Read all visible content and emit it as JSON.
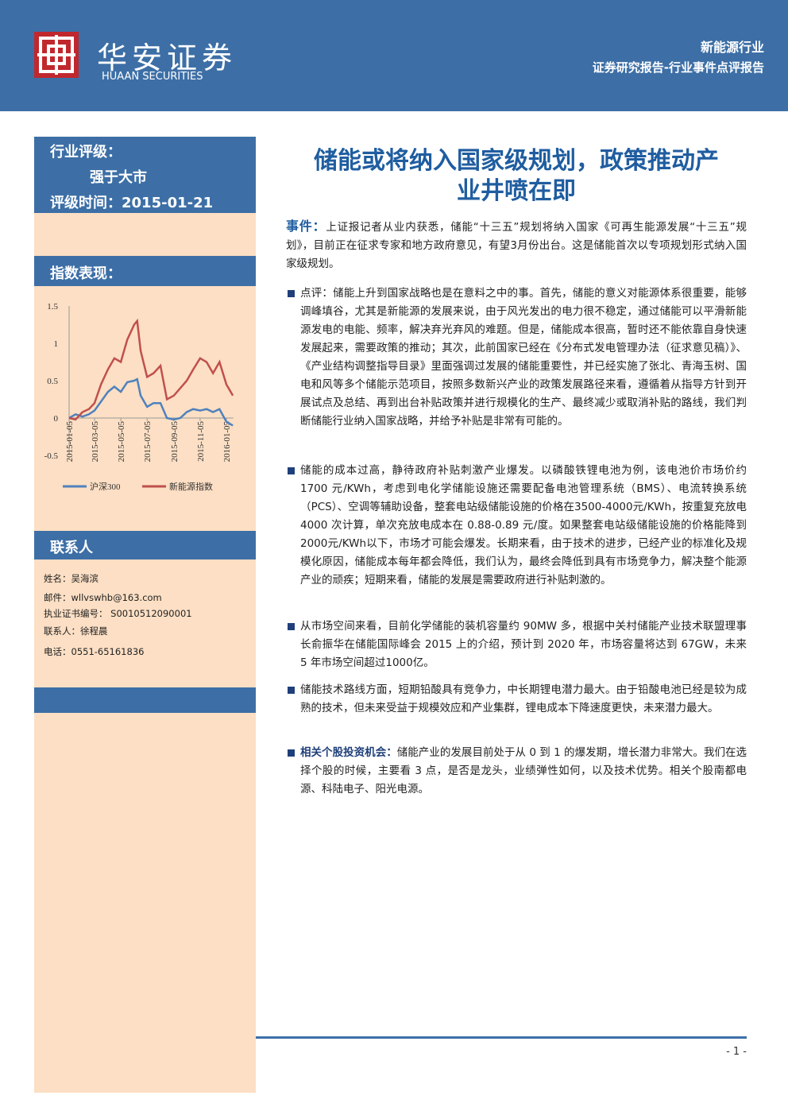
{
  "header": {
    "company_cn": "华安证券",
    "company_en": "HUAAN SECURITIES",
    "sector": "新能源行业",
    "report_type": "证券研究报告-行业事件点评报告"
  },
  "sidebar": {
    "rating_label": "行业评级：",
    "rating": "强于大市",
    "rating_date": "评级时间：2015-01-21",
    "index_label": "指数表现：",
    "contact_label": "联系人",
    "contacts": [
      "姓名：吴海滨",
      "邮件：wllvswhb@163.com",
      "执业证书编号： S0010512090001",
      "联系人：徐程晨",
      "电话：0551-65161836"
    ]
  },
  "chart_data": {
    "type": "line",
    "x": [
      "2015-01-05",
      "2015-01-20",
      "2015-02-05",
      "2015-02-20",
      "2015-03-05",
      "2015-03-20",
      "2015-04-05",
      "2015-04-20",
      "2015-05-05",
      "2015-05-20",
      "2015-06-05",
      "2015-06-12",
      "2015-06-20",
      "2015-07-05",
      "2015-07-20",
      "2015-08-05",
      "2015-08-20",
      "2015-09-05",
      "2015-09-20",
      "2015-10-05",
      "2015-10-20",
      "2015-11-05",
      "2015-11-20",
      "2015-12-05",
      "2015-12-20",
      "2016-01-05",
      "2016-01-20"
    ],
    "series": [
      {
        "name": "沪深300",
        "color": "#4f81bd",
        "values": [
          0,
          0.05,
          0.02,
          0.05,
          0.1,
          0.22,
          0.35,
          0.42,
          0.35,
          0.48,
          0.5,
          0.52,
          0.3,
          0.15,
          0.2,
          0.2,
          0,
          -0.02,
          0,
          0.08,
          0.12,
          0.1,
          0.12,
          0.08,
          0.12,
          -0.05,
          -0.1
        ]
      },
      {
        "name": "新能源指数",
        "color": "#c0504d",
        "values": [
          0,
          -0.02,
          0.08,
          0.12,
          0.2,
          0.45,
          0.65,
          0.8,
          0.75,
          1.05,
          1.25,
          1.3,
          0.9,
          0.55,
          0.6,
          0.7,
          0.25,
          0.3,
          0.4,
          0.5,
          0.65,
          0.8,
          0.75,
          0.6,
          0.75,
          0.45,
          0.3
        ]
      }
    ],
    "ylim": [
      -0.5,
      1.5
    ],
    "yticks": [
      -0.5,
      0,
      0.5,
      1,
      1.5
    ],
    "xlim": [
      "2015-01-05",
      "2016-01-21"
    ],
    "xticks": [
      "2015-01-05",
      "2015-03-05",
      "2015-05-05",
      "2015-07-05",
      "2015-09-05",
      "2015-11-05",
      "2016-01-05"
    ]
  },
  "body": {
    "title": [
      "储能或将纳入国家级规划，政策推动产",
      "业井喷在即"
    ],
    "event": {
      "lead": "事件：",
      "text": "上证报记者从业内获悉，储能“十三五”规划将纳入国家《可再生能源发展“十三五”规划》，目前正在征求专家和地方政府意见，有望3月份出台。这是储能首次以专项规划形式纳入国家级规划。"
    },
    "bullets": [
      {
        "lead": "",
        "text": "点评：储能上升到国家战略也是在意料之中的事。首先，储能的意义对能源体系很重要，能够调峰填谷，尤其是新能源的发展来说，由于风光发出的电力很不稳定，通过储能可以平滑新能源发电的电能、频率，解决弃光弃风的难题。但是，储能成本很高，暂时还不能依靠自身快速发展起来，需要政策的推动；其次，此前国家已经在《分布式发电管理办法（征求意见稿）》、《产业结构调整指导目录》里面强调过发展的储能重要性，并已经实施了张北、青海玉树、国电和风等多个储能示范项目，按照多数新兴产业的政策发展路径来看，遵循着从指导方针到开展试点及总结、再到出台补贴政策并进行规模化的生产、最终减少或取消补贴的路线，我们判断储能行业纳入国家战略，并给予补贴是非常有可能的。"
      },
      {
        "lead": "",
        "text": "储能的成本过高，静待政府补贴刺激产业爆发。以磷酸铁锂电池为例，该电池价市场价约 1700 元/KWh，考虑到电化学储能设施还需要配备电池管理系统（BMS）、电流转换系统（PCS）、空调等辅助设备，整套电站级储能设施的价格在3500-4000元/KWh，按重复充放电 4000 次计算，单次充放电成本在 0.88-0.89 元/度。如果整套电站级储能设施的价格能降到2000元/KWh以下，市场才可能会爆发。长期来看，由于技术的进步，已经产业的标准化及规模化原因，储能成本每年都会降低，我们认为，最终会降低到具有市场竞争力，解决整个能源产业的顽疾；短期来看，储能的发展是需要政府进行补贴刺激的。"
      },
      {
        "lead": "",
        "text": "从市场空间来看，目前化学储能的装机容量约 90MW 多，根据中关村储能产业技术联盟理事长俞振华在储能国际峰会 2015 上的介绍，预计到 2020 年，市场容量将达到 67GW，未来 5 年市场空间超过1000亿。"
      },
      {
        "lead": "",
        "text": "储能技术路线方面，短期铅酸具有竞争力，中长期锂电潜力最大。由于铅酸电池已经是较为成熟的技术，但未来受益于规模效应和产业集群，锂电成本下降速度更快，未来潜力最大。"
      },
      {
        "lead": "相关个股投资机会：",
        "text": "储能产业的发展目前处于从 0 到 1 的爆发期，增长潜力非常大。我们在选择个股的时候，主要看 3 点，是否是龙头，业绩弹性如何，以及技术优势。相关个股南都电源、科陆电子、阳光电源。"
      }
    ]
  },
  "footer": {
    "page": "- 1 -"
  }
}
